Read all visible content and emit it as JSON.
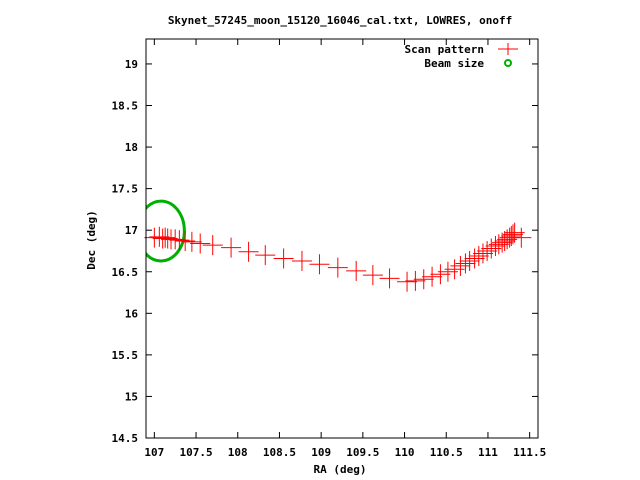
{
  "chart_data": {
    "type": "scatter",
    "title": "Skynet_57245_moon_15120_16046_cal.txt, LOWRES, onoff",
    "xlabel": "RA (deg)",
    "ylabel": "Dec (deg)",
    "xlim": [
      106.9,
      111.6
    ],
    "ylim": [
      14.5,
      19.3
    ],
    "xticks": [
      107,
      107.5,
      108,
      108.5,
      109,
      109.5,
      110,
      110.5,
      111,
      111.5
    ],
    "xtick_labels": [
      "107",
      "107.5",
      "108",
      "108.5",
      "109",
      "109.5",
      "110",
      "110.5",
      "111",
      "111.5"
    ],
    "yticks": [
      14.5,
      15,
      15.5,
      16,
      16.5,
      17,
      17.5,
      18,
      18.5,
      19
    ],
    "ytick_labels": [
      "14.5",
      "15",
      "15.5",
      "16",
      "16.5",
      "17",
      "17.5",
      "18",
      "18.5",
      "19"
    ],
    "legend_position": "top-right",
    "series": [
      {
        "name": "Scan pattern",
        "color": "#ff0000",
        "marker": "plus",
        "x": [
          107.0,
          107.06,
          107.1,
          107.13,
          107.16,
          107.2,
          107.25,
          107.3,
          107.37,
          107.45,
          107.55,
          107.7,
          107.92,
          108.13,
          108.33,
          108.55,
          108.77,
          108.98,
          109.2,
          109.42,
          109.62,
          109.82,
          110.03,
          110.13,
          110.23,
          110.33,
          110.43,
          110.52,
          110.6,
          110.67,
          110.73,
          110.78,
          110.84,
          110.89,
          110.94,
          110.99,
          111.04,
          111.09,
          111.13,
          111.17,
          111.2,
          111.23,
          111.26,
          111.28,
          111.3,
          111.32,
          111.4
        ],
        "y": [
          16.91,
          16.92,
          16.9,
          16.91,
          16.9,
          16.89,
          16.89,
          16.88,
          16.87,
          16.86,
          16.84,
          16.82,
          16.79,
          16.74,
          16.7,
          16.66,
          16.63,
          16.59,
          16.55,
          16.51,
          16.46,
          16.42,
          16.38,
          16.39,
          16.41,
          16.44,
          16.47,
          16.5,
          16.53,
          16.57,
          16.6,
          16.63,
          16.66,
          16.69,
          16.72,
          16.75,
          16.78,
          16.81,
          16.83,
          16.85,
          16.87,
          16.89,
          16.91,
          16.93,
          16.95,
          16.97,
          16.91
        ]
      },
      {
        "name": "Beam size",
        "color": "#00b000",
        "marker": "circle",
        "center": [
          107.08,
          16.99
        ],
        "radius_x": 0.28,
        "radius_y": 0.36
      }
    ]
  }
}
